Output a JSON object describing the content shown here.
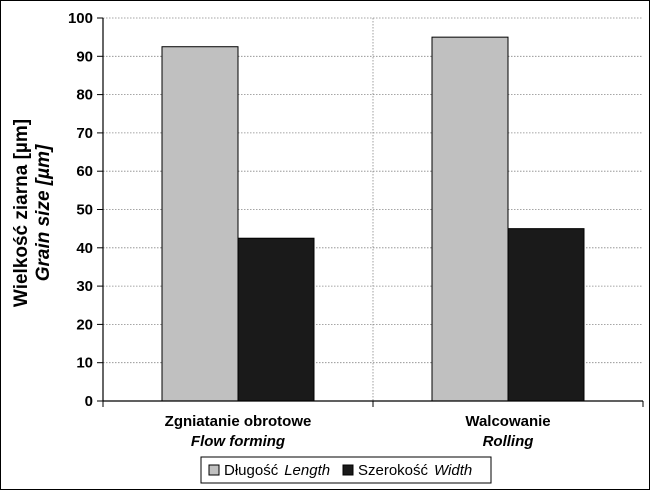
{
  "chart_data": {
    "type": "bar",
    "categories": [
      {
        "line1": "Zgniatanie obrotowe",
        "line2": "Flow forming"
      },
      {
        "line1": "Walcowanie",
        "line2": "Rolling"
      }
    ],
    "series": [
      {
        "name_pl": "Długość",
        "name_en": "Length",
        "values": [
          92.5,
          95.0
        ],
        "color": "#c0c0c0"
      },
      {
        "name_pl": "Szerokość",
        "name_en": "Width",
        "values": [
          42.5,
          45.0
        ],
        "color": "#1a1a1a"
      }
    ],
    "ylabel_line1": "Wielkość ziarna [µm]",
    "ylabel_line2": "Grain size [µm]",
    "ylim": [
      0,
      100
    ],
    "yticks": [
      0,
      10,
      20,
      30,
      40,
      50,
      60,
      70,
      80,
      90,
      100
    ],
    "grid": true,
    "legend_position": "bottom-center",
    "colors": {
      "grid": "#888888",
      "axis": "#000000",
      "bar_edge": "#000000"
    }
  }
}
